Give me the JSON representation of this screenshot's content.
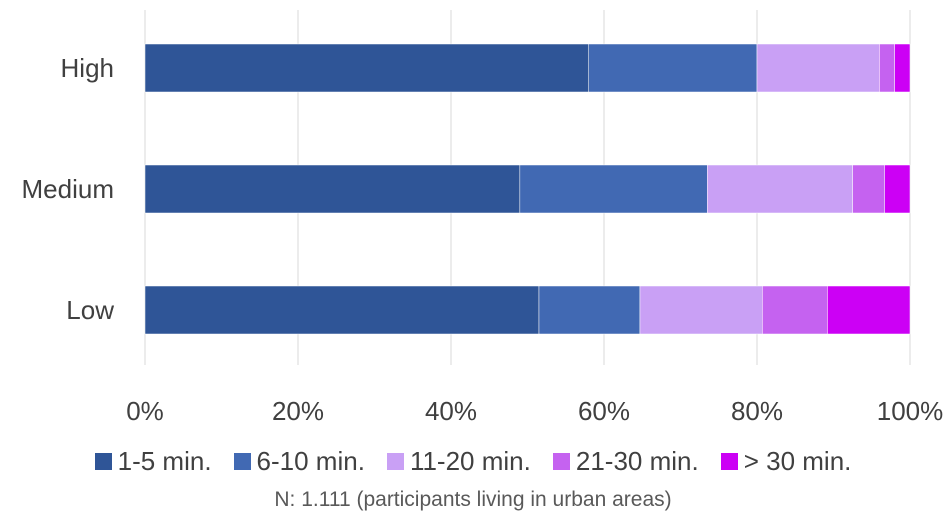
{
  "chart_data": {
    "type": "bar",
    "orientation": "horizontal",
    "stacked": "percent",
    "categories": [
      "High",
      "Medium",
      "Low"
    ],
    "series": [
      {
        "name": "1-5 min.",
        "color": "#2f5597",
        "values": [
          58,
          49,
          51.5
        ]
      },
      {
        "name": "6-10 min.",
        "color": "#4169b3",
        "values": [
          22,
          24.5,
          13.2
        ]
      },
      {
        "name": "11-20 min.",
        "color": "#c9a0f5",
        "values": [
          16,
          19,
          16
        ]
      },
      {
        "name": "21-30 min.",
        "color": "#c562f0",
        "values": [
          2,
          4.2,
          8.5
        ]
      },
      {
        "name": "> 30 min.",
        "color": "#cc00f5",
        "values": [
          2,
          3.3,
          10.8
        ]
      }
    ],
    "xticks": [
      "0%",
      "20%",
      "40%",
      "60%",
      "80%",
      "100%"
    ],
    "xlim": [
      0,
      100
    ],
    "grid": true,
    "legend_position": "bottom",
    "note": "N: 1.111 (participants living in urban areas)"
  }
}
